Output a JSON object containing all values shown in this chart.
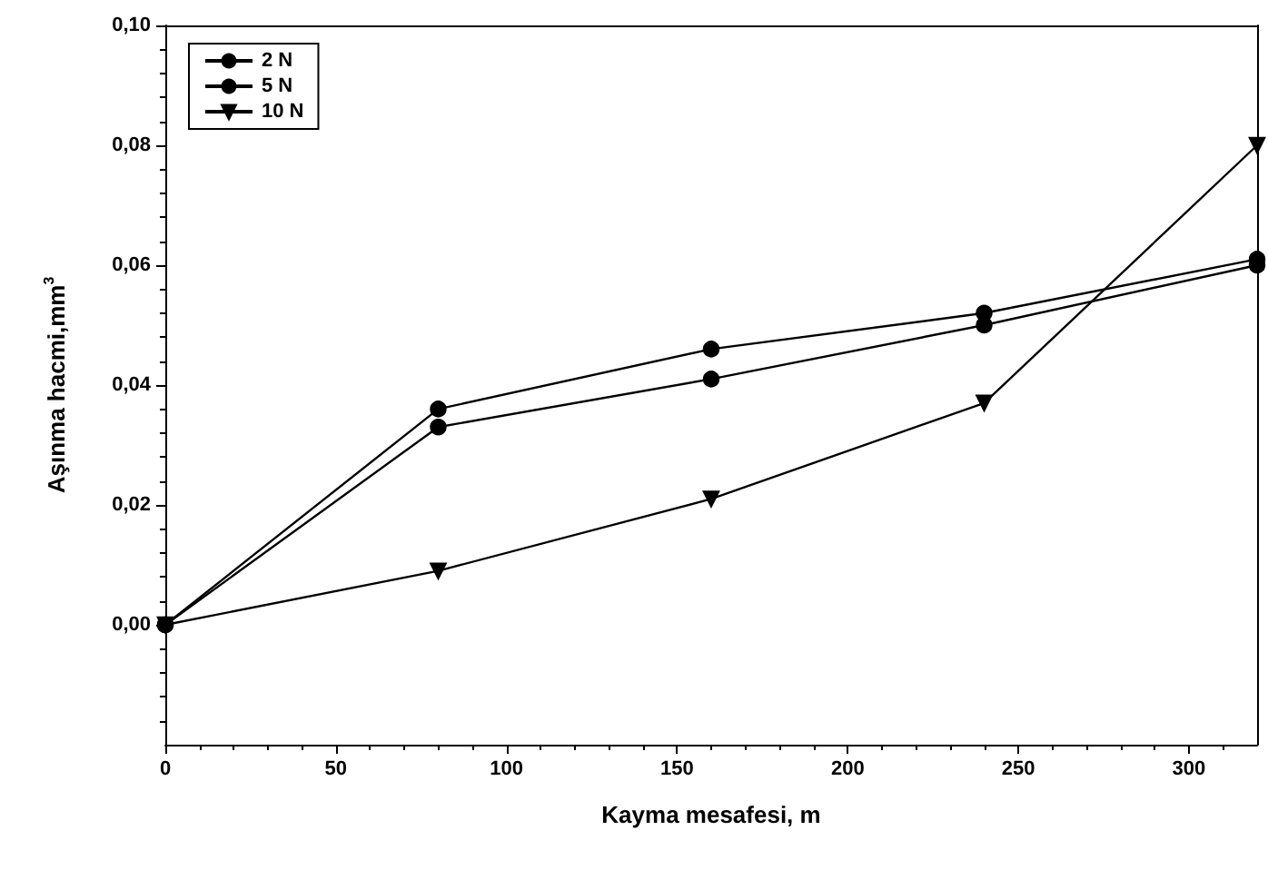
{
  "chart_data": {
    "type": "line",
    "xlabel": "Kayma mesafesi, m",
    "ylabel": "Aşınma hacmi,mm$^{3}$",
    "xlim": [
      0,
      320
    ],
    "xticks": [
      0,
      50,
      100,
      150,
      200,
      250,
      300
    ],
    "ylim": [
      -0.02,
      0.1
    ],
    "yticks": [
      {
        "value": 0,
        "label": "0,00"
      },
      {
        "value": 0.02,
        "label": "0,02"
      },
      {
        "value": 0.04,
        "label": "0,04"
      },
      {
        "value": 0.06,
        "label": "0,06"
      },
      {
        "value": 0.08,
        "label": "0,08"
      },
      {
        "value": 0.1,
        "label": "0,10"
      }
    ],
    "x": [
      0,
      80,
      160,
      240,
      320
    ],
    "grid": false,
    "legend": "top left",
    "line_style": "solid",
    "series": [
      {
        "name": "2 N",
        "color": "#000000",
        "marker": "circle",
        "values": [
          0,
          0.033,
          0.041,
          0.05,
          0.06
        ]
      },
      {
        "name": "5 N",
        "color": "#000000",
        "marker": "circle",
        "values": [
          0,
          0.036,
          0.046,
          0.052,
          0.061
        ]
      },
      {
        "name": "10 N",
        "color": "#000000",
        "marker": "triangle",
        "values": [
          0,
          0.009,
          0.021,
          0.037,
          0.08
        ]
      }
    ]
  }
}
